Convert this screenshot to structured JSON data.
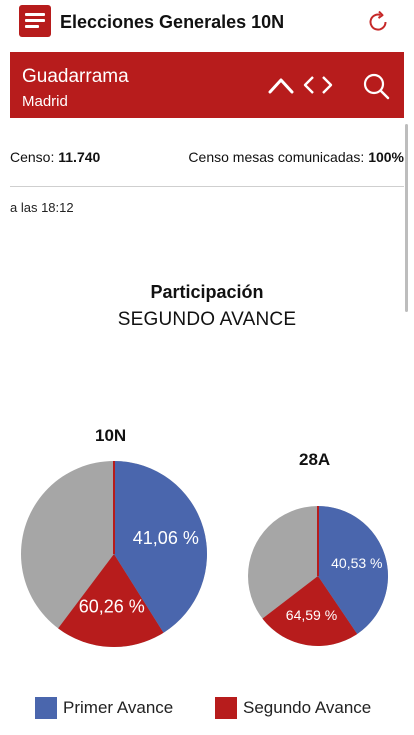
{
  "app": {
    "title": "Elecciones Generales 10N"
  },
  "location": {
    "name": "Guadarrama",
    "region": "Madrid"
  },
  "census": {
    "label": "Censo:",
    "value": "11.740",
    "reported_label": "Censo mesas comunicadas:",
    "reported_value": "100%"
  },
  "timestamp": "a las 18:12",
  "participation": {
    "title": "Participación",
    "subtitle": "SEGUNDO AVANCE"
  },
  "colors": {
    "primer": "#4a66ad",
    "segundo": "#b71c1c",
    "remaining": "#a6a6a6",
    "brand": "#b71c1c"
  },
  "chart_data": [
    {
      "type": "pie",
      "title": "10N",
      "series": [
        {
          "name": "Primer Avance",
          "value": 41.06,
          "label": "41,06 %"
        },
        {
          "name": "Segundo Avance",
          "value": 60.26,
          "label": "60,26 %"
        }
      ]
    },
    {
      "type": "pie",
      "title": "28A",
      "series": [
        {
          "name": "Primer Avance",
          "value": 40.53,
          "label": "40,53 %"
        },
        {
          "name": "Segundo Avance",
          "value": 64.59,
          "label": "64,59 %"
        }
      ]
    }
  ],
  "legend": {
    "items": [
      {
        "label": "Primer Avance"
      },
      {
        "label": "Segundo Avance"
      }
    ]
  }
}
